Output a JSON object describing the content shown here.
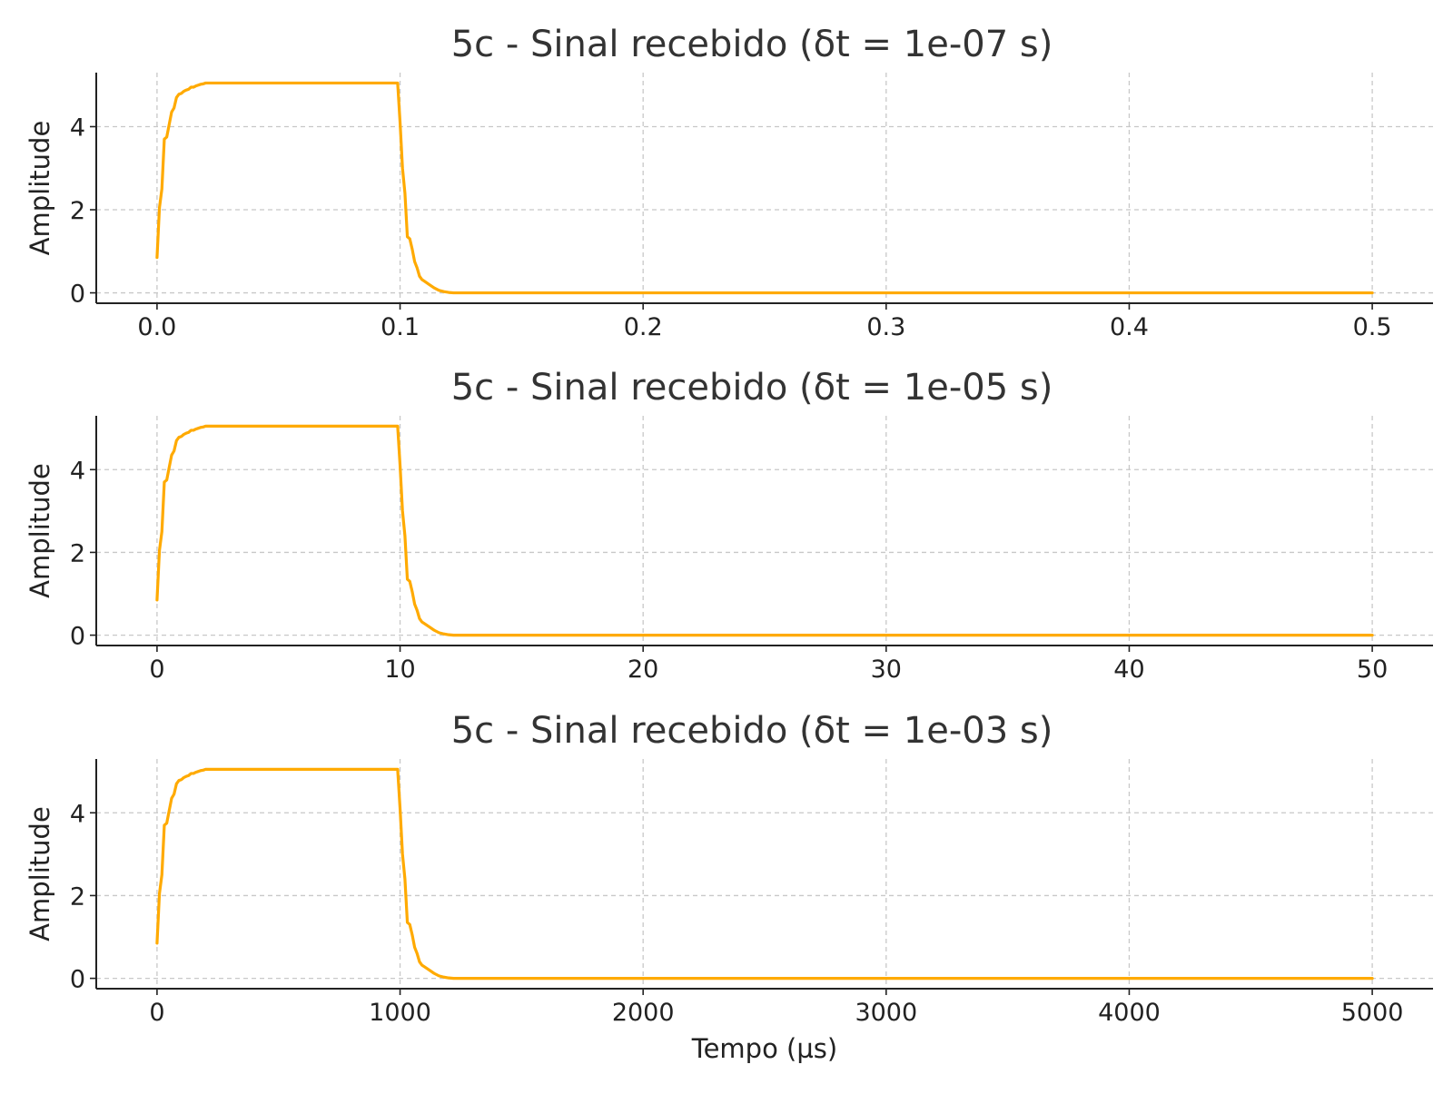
{
  "chart_data": [
    {
      "type": "line",
      "title": "5c - Sinal recebido (δt = 1e-07 s)",
      "ylabel": "Amplitude",
      "xlabel": "",
      "xlim": [
        -0.025,
        0.525
      ],
      "ylim": [
        -0.25,
        5.3
      ],
      "xticks": [
        0.0,
        0.1,
        0.2,
        0.3,
        0.4,
        0.5
      ],
      "xtick_labels": [
        "0.0",
        "0.1",
        "0.2",
        "0.3",
        "0.4",
        "0.5"
      ],
      "yticks": [
        0,
        2,
        4
      ],
      "ytick_labels": [
        "0",
        "2",
        "4"
      ],
      "grid": true,
      "color": "#FFAA00",
      "series": [
        {
          "x": [
            0.0,
            0.001,
            0.002,
            0.003,
            0.004,
            0.005,
            0.006,
            0.007,
            0.008,
            0.009,
            0.01,
            0.011,
            0.012,
            0.013,
            0.014,
            0.015,
            0.016,
            0.017,
            0.018,
            0.019,
            0.02,
            0.022,
            0.024,
            0.05,
            0.099,
            0.1,
            0.101,
            0.102,
            0.103,
            0.104,
            0.105,
            0.106,
            0.107,
            0.108,
            0.109,
            0.11,
            0.112,
            0.114,
            0.116,
            0.118,
            0.12,
            0.122,
            0.5
          ],
          "y": [
            0.85,
            2.05,
            2.5,
            3.7,
            3.75,
            4.05,
            4.35,
            4.45,
            4.7,
            4.78,
            4.8,
            4.85,
            4.88,
            4.9,
            4.95,
            4.95,
            4.98,
            5.0,
            5.02,
            5.03,
            5.05,
            5.05,
            5.05,
            5.05,
            5.05,
            4.1,
            3.0,
            2.4,
            1.35,
            1.3,
            1.05,
            0.75,
            0.6,
            0.4,
            0.32,
            0.28,
            0.2,
            0.12,
            0.06,
            0.03,
            0.01,
            0.0,
            0.0
          ]
        }
      ]
    },
    {
      "type": "line",
      "title": "5c - Sinal recebido (δt = 1e-05 s)",
      "ylabel": "Amplitude",
      "xlabel": "",
      "xlim": [
        -2.5,
        52.5
      ],
      "ylim": [
        -0.25,
        5.3
      ],
      "xticks": [
        0,
        10,
        20,
        30,
        40,
        50
      ],
      "xtick_labels": [
        "0",
        "10",
        "20",
        "30",
        "40",
        "50"
      ],
      "yticks": [
        0,
        2,
        4
      ],
      "ytick_labels": [
        "0",
        "2",
        "4"
      ],
      "grid": true,
      "color": "#FFAA00",
      "series": [
        {
          "x": [
            0.0,
            0.1,
            0.2,
            0.3,
            0.4,
            0.5,
            0.6,
            0.7,
            0.8,
            0.9,
            1.0,
            1.1,
            1.2,
            1.3,
            1.4,
            1.5,
            1.6,
            1.7,
            1.8,
            1.9,
            2.0,
            2.2,
            2.4,
            5.0,
            9.9,
            10.0,
            10.1,
            10.2,
            10.3,
            10.4,
            10.5,
            10.6,
            10.7,
            10.8,
            10.9,
            11.0,
            11.2,
            11.4,
            11.6,
            11.8,
            12.0,
            12.2,
            50.0
          ],
          "y": [
            0.85,
            2.05,
            2.5,
            3.7,
            3.75,
            4.05,
            4.35,
            4.45,
            4.7,
            4.78,
            4.8,
            4.85,
            4.88,
            4.9,
            4.95,
            4.95,
            4.98,
            5.0,
            5.02,
            5.03,
            5.05,
            5.05,
            5.05,
            5.05,
            5.05,
            4.1,
            3.0,
            2.4,
            1.35,
            1.3,
            1.05,
            0.75,
            0.6,
            0.4,
            0.32,
            0.28,
            0.2,
            0.12,
            0.06,
            0.03,
            0.01,
            0.0,
            0.0
          ]
        }
      ]
    },
    {
      "type": "line",
      "title": "5c - Sinal recebido (δt = 1e-03 s)",
      "ylabel": "Amplitude",
      "xlabel": "Tempo (µs)",
      "xlim": [
        -250,
        5250
      ],
      "ylim": [
        -0.25,
        5.3
      ],
      "xticks": [
        0,
        1000,
        2000,
        3000,
        4000,
        5000
      ],
      "xtick_labels": [
        "0",
        "1000",
        "2000",
        "3000",
        "4000",
        "5000"
      ],
      "yticks": [
        0,
        2,
        4
      ],
      "ytick_labels": [
        "0",
        "2",
        "4"
      ],
      "grid": true,
      "color": "#FFAA00",
      "series": [
        {
          "x": [
            0,
            10,
            20,
            30,
            40,
            50,
            60,
            70,
            80,
            90,
            100,
            110,
            120,
            130,
            140,
            150,
            160,
            170,
            180,
            190,
            200,
            220,
            240,
            500,
            990,
            1000,
            1010,
            1020,
            1030,
            1040,
            1050,
            1060,
            1070,
            1080,
            1090,
            1100,
            1120,
            1140,
            1160,
            1180,
            1200,
            1220,
            5000
          ],
          "y": [
            0.85,
            2.05,
            2.5,
            3.7,
            3.75,
            4.05,
            4.35,
            4.45,
            4.7,
            4.78,
            4.8,
            4.85,
            4.88,
            4.9,
            4.95,
            4.95,
            4.98,
            5.0,
            5.02,
            5.03,
            5.05,
            5.05,
            5.05,
            5.05,
            5.05,
            4.1,
            3.0,
            2.4,
            1.35,
            1.3,
            1.05,
            0.75,
            0.6,
            0.4,
            0.32,
            0.28,
            0.2,
            0.12,
            0.06,
            0.03,
            0.01,
            0.0,
            0.0
          ]
        }
      ]
    }
  ]
}
